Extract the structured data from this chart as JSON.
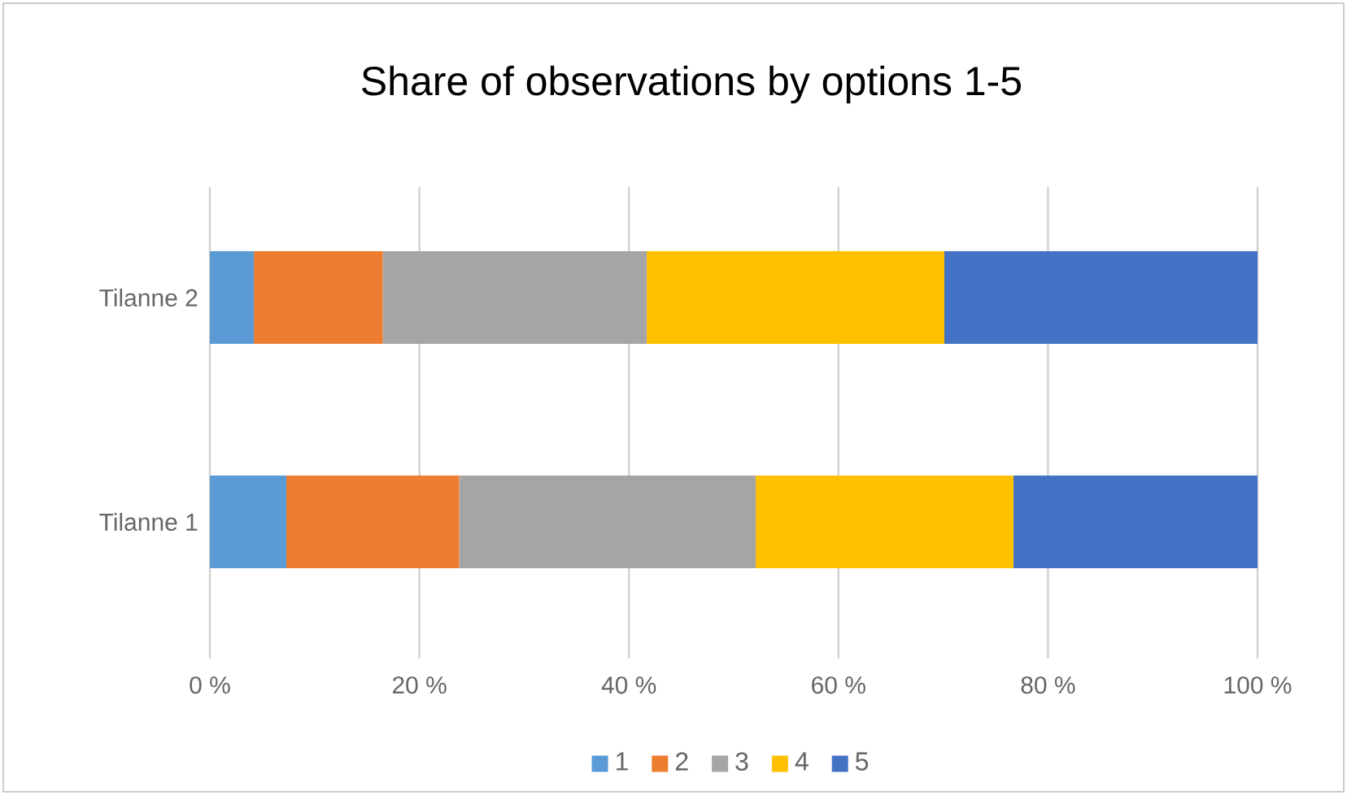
{
  "chart_data": {
    "type": "bar",
    "orientation": "horizontal",
    "stacked": true,
    "title": "Share of observations by options 1-5",
    "categories": [
      "Tilanne 2",
      "Tilanne 1"
    ],
    "series": [
      {
        "name": "1",
        "color": "#5b9bd5",
        "values": [
          4.2,
          7.3
        ]
      },
      {
        "name": "2",
        "color": "#ed7d31",
        "values": [
          12.3,
          16.5
        ]
      },
      {
        "name": "3",
        "color": "#a5a5a5",
        "values": [
          25.2,
          28.3
        ]
      },
      {
        "name": "4",
        "color": "#ffc000",
        "values": [
          28.4,
          24.6
        ]
      },
      {
        "name": "5",
        "color": "#4472c4",
        "values": [
          29.9,
          23.3
        ]
      }
    ],
    "xlim": [
      0,
      100
    ],
    "xticks": [
      {
        "value": 0,
        "label": "0 %"
      },
      {
        "value": 20,
        "label": "20 %"
      },
      {
        "value": 40,
        "label": "40 %"
      },
      {
        "value": 60,
        "label": "60 %"
      },
      {
        "value": 80,
        "label": "80 %"
      },
      {
        "value": 100,
        "label": "100 %"
      }
    ],
    "grid": "x",
    "legend": "bottom"
  }
}
